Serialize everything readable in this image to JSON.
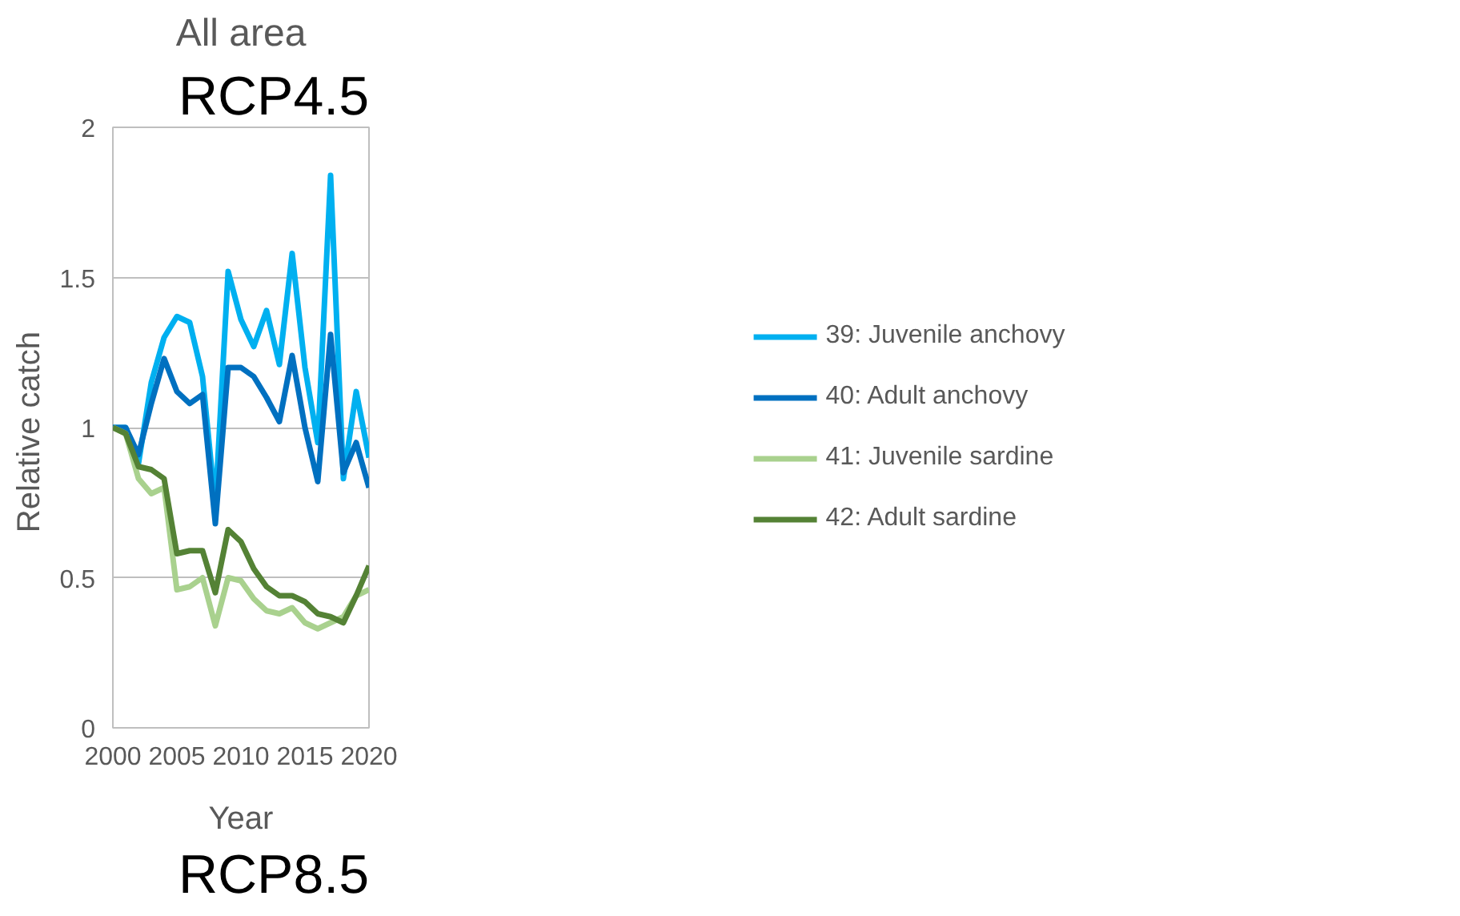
{
  "chart_data": {
    "type": "line",
    "title": "All area",
    "xlabel": "Year",
    "ylabel": "Relative  catch",
    "x": [
      2000,
      2001,
      2002,
      2003,
      2004,
      2005,
      2006,
      2007,
      2008,
      2009,
      2010,
      2011,
      2012,
      2013,
      2014,
      2015,
      2016,
      2017,
      2018,
      2019,
      2020
    ],
    "series": [
      {
        "name": "39: Juvenile anchovy",
        "color": "#00b0f0",
        "values": [
          1.0,
          1.0,
          0.88,
          1.15,
          1.3,
          1.37,
          1.35,
          1.17,
          0.74,
          1.52,
          1.36,
          1.27,
          1.39,
          1.21,
          1.58,
          1.2,
          0.95,
          1.84,
          0.83,
          1.12,
          0.9
        ]
      },
      {
        "name": "40: Adult anchovy",
        "color": "#0070c0",
        "values": [
          1.0,
          1.0,
          0.91,
          1.08,
          1.23,
          1.12,
          1.08,
          1.11,
          0.68,
          1.2,
          1.2,
          1.17,
          1.1,
          1.02,
          1.24,
          1.0,
          0.82,
          1.31,
          0.85,
          0.95,
          0.8
        ]
      },
      {
        "name": "41: Juvenile sardine",
        "color": "#a9d18e",
        "values": [
          1.0,
          0.98,
          0.83,
          0.78,
          0.8,
          0.46,
          0.47,
          0.5,
          0.34,
          0.5,
          0.49,
          0.43,
          0.39,
          0.38,
          0.4,
          0.35,
          0.33,
          0.35,
          0.37,
          0.44,
          0.46
        ]
      },
      {
        "name": "42: Adult sardine",
        "color": "#548235",
        "values": [
          1.0,
          0.98,
          0.87,
          0.86,
          0.83,
          0.58,
          0.59,
          0.59,
          0.45,
          0.66,
          0.62,
          0.53,
          0.47,
          0.44,
          0.44,
          0.42,
          0.38,
          0.37,
          0.35,
          0.44,
          0.54
        ]
      }
    ],
    "xlim": [
      2000,
      2020
    ],
    "xticks": [
      2000,
      2005,
      2010,
      2015,
      2020
    ],
    "ylim": [
      0,
      2
    ],
    "yticks": [
      0,
      0.5,
      1,
      1.5,
      2
    ],
    "grid": "y",
    "legend": "right",
    "marker": "none",
    "line_style": "solid",
    "annotations": [
      "RCP4.5",
      "RCP8.5"
    ]
  }
}
